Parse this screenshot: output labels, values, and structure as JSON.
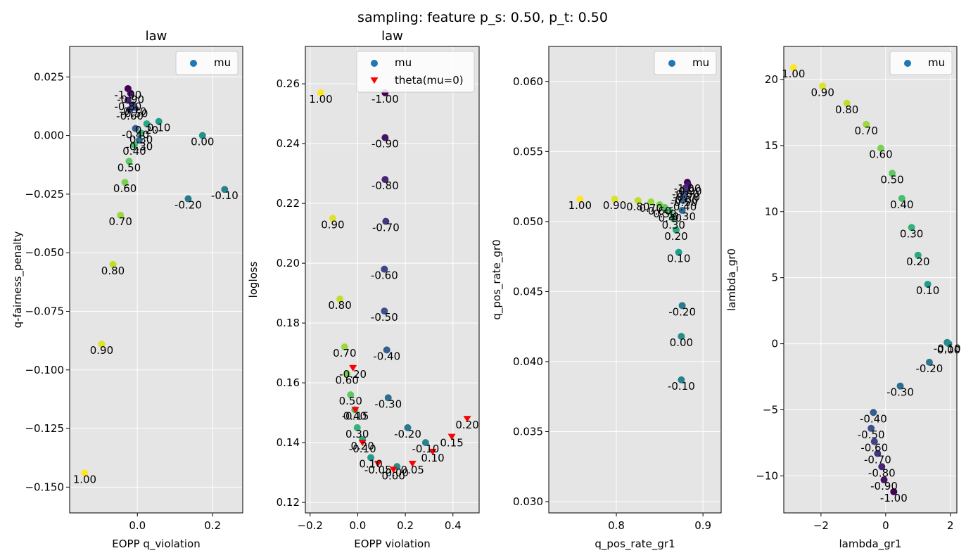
{
  "suptitle": "sampling: feature p_s: 0.50, p_t: 0.50",
  "colors": {
    "axes_bg": "#e5e5e5",
    "grid": "#ffffff",
    "legend_mu": "#1f77b4",
    "legend_theta": "#ff0000",
    "theta_marker": "#ff0000",
    "colormap": "viridis"
  },
  "chart_data": [
    {
      "type": "scatter",
      "title": "law",
      "xlabel": "EOPP q_violation",
      "ylabel": "q-fairness_penalty",
      "xlim": [
        -0.18,
        0.28
      ],
      "ylim": [
        -0.161,
        0.038
      ],
      "xticks": [
        {
          "v": 0.0,
          "label": "0.0"
        },
        {
          "v": 0.2,
          "label": "0.2"
        }
      ],
      "yticks": [
        {
          "v": 0.025,
          "label": "0.025"
        },
        {
          "v": 0.0,
          "label": "0.000"
        },
        {
          "v": -0.025,
          "label": "−0.025"
        },
        {
          "v": -0.05,
          "label": "−0.050"
        },
        {
          "v": -0.075,
          "label": "−0.075"
        },
        {
          "v": -0.1,
          "label": "−0.100"
        },
        {
          "v": -0.125,
          "label": "−0.125"
        },
        {
          "v": -0.15,
          "label": "−0.150"
        }
      ],
      "grid": true,
      "legend": {
        "position": "top-right",
        "entries": [
          {
            "label": "mu",
            "marker": "circle"
          }
        ]
      },
      "series": [
        {
          "marker": "circle",
          "points": [
            {
              "x": -0.025,
              "y": 0.02,
              "mu": -1.0,
              "label": "-1.00"
            },
            {
              "x": -0.018,
              "y": 0.018,
              "mu": -0.9,
              "label": "-0.90"
            },
            {
              "x": -0.025,
              "y": 0.015,
              "mu": -0.8,
              "label": "-0.80"
            },
            {
              "x": -0.012,
              "y": 0.013,
              "mu": -0.7,
              "label": "-0.70"
            },
            {
              "x": -0.02,
              "y": 0.011,
              "mu": -0.6,
              "label": "-0.60"
            },
            {
              "x": -0.008,
              "y": 0.012,
              "mu": -0.5,
              "label": "-0.50"
            },
            {
              "x": -0.005,
              "y": 0.003,
              "mu": -0.4,
              "label": "-0.40"
            },
            {
              "x": 0.005,
              "y": -0.002,
              "mu": -0.3,
              "label": "-0.30"
            },
            {
              "x": 0.135,
              "y": -0.027,
              "mu": -0.2,
              "label": "-0.20"
            },
            {
              "x": 0.232,
              "y": -0.023,
              "mu": -0.1,
              "label": "-0.10"
            },
            {
              "x": 0.173,
              "y": 0.0,
              "mu": 0.0,
              "label": "0.00"
            },
            {
              "x": 0.057,
              "y": 0.006,
              "mu": 0.1,
              "label": "0.10"
            },
            {
              "x": 0.025,
              "y": 0.005,
              "mu": 0.2,
              "label": "0.20"
            },
            {
              "x": 0.01,
              "y": 0.001,
              "mu": 0.3,
              "label": "0.30"
            },
            {
              "x": -0.008,
              "y": -0.004,
              "mu": 0.4,
              "label": "0.40"
            },
            {
              "x": -0.022,
              "y": -0.011,
              "mu": 0.5,
              "label": "0.50"
            },
            {
              "x": -0.033,
              "y": -0.02,
              "mu": 0.6,
              "label": "0.60"
            },
            {
              "x": -0.045,
              "y": -0.034,
              "mu": 0.7,
              "label": "0.70"
            },
            {
              "x": -0.065,
              "y": -0.055,
              "mu": 0.8,
              "label": "0.80"
            },
            {
              "x": -0.095,
              "y": -0.089,
              "mu": 0.9,
              "label": "0.90"
            },
            {
              "x": -0.14,
              "y": -0.144,
              "mu": 1.0,
              "label": "1.00"
            }
          ]
        }
      ]
    },
    {
      "type": "scatter",
      "title": "law",
      "xlabel": "EOPP violation",
      "ylabel": "logloss",
      "xlim": [
        -0.22,
        0.51
      ],
      "ylim": [
        0.1165,
        0.2725
      ],
      "xticks": [
        {
          "v": -0.2,
          "label": "−0.2"
        },
        {
          "v": 0.0,
          "label": "0.0"
        },
        {
          "v": 0.2,
          "label": "0.2"
        },
        {
          "v": 0.4,
          "label": "0.4"
        }
      ],
      "yticks": [
        {
          "v": 0.12,
          "label": "0.12"
        },
        {
          "v": 0.14,
          "label": "0.14"
        },
        {
          "v": 0.16,
          "label": "0.16"
        },
        {
          "v": 0.18,
          "label": "0.18"
        },
        {
          "v": 0.2,
          "label": "0.20"
        },
        {
          "v": 0.22,
          "label": "0.22"
        },
        {
          "v": 0.24,
          "label": "0.24"
        },
        {
          "v": 0.26,
          "label": "0.26"
        }
      ],
      "grid": true,
      "legend": {
        "position": "top-right",
        "entries": [
          {
            "label": "mu",
            "marker": "circle"
          },
          {
            "label": "theta(mu=0)",
            "marker": "triangle"
          }
        ]
      },
      "series": [
        {
          "marker": "circle",
          "points": [
            {
              "x": 0.115,
              "y": 0.257,
              "mu": -1.0,
              "label": "-1.00"
            },
            {
              "x": 0.115,
              "y": 0.242,
              "mu": -0.9,
              "label": "-0.90"
            },
            {
              "x": 0.115,
              "y": 0.228,
              "mu": -0.8,
              "label": "-0.80"
            },
            {
              "x": 0.118,
              "y": 0.214,
              "mu": -0.7,
              "label": "-0.70"
            },
            {
              "x": 0.112,
              "y": 0.198,
              "mu": -0.6,
              "label": "-0.60"
            },
            {
              "x": 0.112,
              "y": 0.184,
              "mu": -0.5,
              "label": "-0.50"
            },
            {
              "x": 0.122,
              "y": 0.171,
              "mu": -0.4,
              "label": "-0.40"
            },
            {
              "x": 0.128,
              "y": 0.155,
              "mu": -0.3,
              "label": "-0.30"
            },
            {
              "x": 0.21,
              "y": 0.145,
              "mu": -0.2,
              "label": "-0.20"
            },
            {
              "x": 0.285,
              "y": 0.14,
              "mu": -0.1,
              "label": "-0.10"
            },
            {
              "x": 0.165,
              "y": 0.132,
              "mu": 0.0,
              "label": "0.00"
            },
            {
              "x": 0.055,
              "y": 0.135,
              "mu": 0.1,
              "label": "0.10"
            },
            {
              "x": 0.02,
              "y": 0.141,
              "mu": 0.2,
              "label": "0.20"
            },
            {
              "x": -0.002,
              "y": 0.145,
              "mu": 0.3,
              "label": "0.30"
            },
            {
              "x": -0.012,
              "y": 0.151,
              "mu": 0.4,
              "label": "0.40"
            },
            {
              "x": -0.03,
              "y": 0.156,
              "mu": 0.5,
              "label": "0.50"
            },
            {
              "x": -0.045,
              "y": 0.163,
              "mu": 0.6,
              "label": "0.60"
            },
            {
              "x": -0.055,
              "y": 0.172,
              "mu": 0.7,
              "label": "0.70"
            },
            {
              "x": -0.075,
              "y": 0.188,
              "mu": 0.8,
              "label": "0.80"
            },
            {
              "x": -0.105,
              "y": 0.215,
              "mu": 0.9,
              "label": "0.90"
            },
            {
              "x": -0.155,
              "y": 0.257,
              "mu": 1.0,
              "label": "1.00"
            }
          ]
        },
        {
          "marker": "triangle",
          "name": "theta(mu=0)",
          "points": [
            {
              "x": -0.02,
              "y": 0.165,
              "label": "-0.20"
            },
            {
              "x": -0.01,
              "y": 0.151,
              "label": "-0.15"
            },
            {
              "x": 0.02,
              "y": 0.14,
              "label": "-0.10"
            },
            {
              "x": 0.085,
              "y": 0.133,
              "label": "-0.05"
            },
            {
              "x": 0.15,
              "y": 0.131,
              "label": "0.00"
            },
            {
              "x": 0.23,
              "y": 0.133,
              "label": "0.05"
            },
            {
              "x": 0.315,
              "y": 0.137,
              "label": "0.10"
            },
            {
              "x": 0.395,
              "y": 0.142,
              "label": "0.15"
            },
            {
              "x": 0.46,
              "y": 0.148,
              "label": "0.20"
            }
          ]
        }
      ]
    },
    {
      "type": "scatter",
      "title": "",
      "xlabel": "q_pos_rate_gr1",
      "ylabel": "q_pos_rate_gr0",
      "xlim": [
        0.722,
        0.921
      ],
      "ylim": [
        0.0292,
        0.0625
      ],
      "xticks": [
        {
          "v": 0.8,
          "label": "0.8"
        },
        {
          "v": 0.9,
          "label": "0.9"
        }
      ],
      "yticks": [
        {
          "v": 0.03,
          "label": "0.030"
        },
        {
          "v": 0.035,
          "label": "0.035"
        },
        {
          "v": 0.04,
          "label": "0.040"
        },
        {
          "v": 0.045,
          "label": "0.045"
        },
        {
          "v": 0.05,
          "label": "0.050"
        },
        {
          "v": 0.055,
          "label": "0.055"
        },
        {
          "v": 0.06,
          "label": "0.060"
        }
      ],
      "grid": true,
      "legend": {
        "position": "top-right",
        "entries": [
          {
            "label": "mu",
            "marker": "circle"
          }
        ]
      },
      "series": [
        {
          "marker": "circle",
          "points": [
            {
              "x": 0.882,
              "y": 0.0528,
              "mu": -1.0,
              "label": "-1.00"
            },
            {
              "x": 0.883,
              "y": 0.0526,
              "mu": -0.9,
              "label": "-0.90"
            },
            {
              "x": 0.88,
              "y": 0.0524,
              "mu": -0.8,
              "label": "-0.80"
            },
            {
              "x": 0.881,
              "y": 0.0522,
              "mu": -0.7,
              "label": "-0.70"
            },
            {
              "x": 0.879,
              "y": 0.052,
              "mu": -0.6,
              "label": "-0.60"
            },
            {
              "x": 0.878,
              "y": 0.0518,
              "mu": -0.5,
              "label": "-0.50"
            },
            {
              "x": 0.877,
              "y": 0.0515,
              "mu": -0.4,
              "label": "-0.40"
            },
            {
              "x": 0.876,
              "y": 0.0508,
              "mu": -0.3,
              "label": "-0.30"
            },
            {
              "x": 0.876,
              "y": 0.044,
              "mu": -0.2,
              "label": "-0.20"
            },
            {
              "x": 0.875,
              "y": 0.0387,
              "mu": -0.1,
              "label": "-0.10"
            },
            {
              "x": 0.875,
              "y": 0.0418,
              "mu": 0.0,
              "label": "0.00"
            },
            {
              "x": 0.872,
              "y": 0.0478,
              "mu": 0.1,
              "label": "0.10"
            },
            {
              "x": 0.869,
              "y": 0.0494,
              "mu": 0.2,
              "label": "0.20"
            },
            {
              "x": 0.866,
              "y": 0.0502,
              "mu": 0.3,
              "label": "0.30"
            },
            {
              "x": 0.862,
              "y": 0.0507,
              "mu": 0.4,
              "label": "0.40"
            },
            {
              "x": 0.856,
              "y": 0.051,
              "mu": 0.5,
              "label": "0.50"
            },
            {
              "x": 0.85,
              "y": 0.0512,
              "mu": 0.6,
              "label": "0.60"
            },
            {
              "x": 0.84,
              "y": 0.0514,
              "mu": 0.7,
              "label": "0.70"
            },
            {
              "x": 0.825,
              "y": 0.0515,
              "mu": 0.8,
              "label": "0.80"
            },
            {
              "x": 0.798,
              "y": 0.0516,
              "mu": 0.9,
              "label": "0.90"
            },
            {
              "x": 0.758,
              "y": 0.0516,
              "mu": 1.0,
              "label": "1.00"
            }
          ]
        }
      ]
    },
    {
      "type": "scatter",
      "title": "",
      "xlabel": "lambda_gr1",
      "ylabel": "lambda_gr0",
      "xlim": [
        -3.15,
        2.2
      ],
      "ylim": [
        -12.8,
        22.5
      ],
      "xticks": [
        {
          "v": -2,
          "label": "−2"
        },
        {
          "v": 0,
          "label": "0"
        },
        {
          "v": 2,
          "label": "2"
        }
      ],
      "yticks": [
        {
          "v": -10,
          "label": "−10"
        },
        {
          "v": -5,
          "label": "−5"
        },
        {
          "v": 0,
          "label": "0"
        },
        {
          "v": 5,
          "label": "5"
        },
        {
          "v": 10,
          "label": "10"
        },
        {
          "v": 15,
          "label": "15"
        },
        {
          "v": 20,
          "label": "20"
        }
      ],
      "grid": true,
      "legend": {
        "position": "top-right",
        "entries": [
          {
            "label": "mu",
            "marker": "circle"
          }
        ]
      },
      "series": [
        {
          "marker": "circle",
          "points": [
            {
              "x": 0.25,
              "y": -11.2,
              "mu": -1.0,
              "label": "-1.00"
            },
            {
              "x": -0.05,
              "y": -10.3,
              "mu": -0.9,
              "label": "-0.90"
            },
            {
              "x": -0.12,
              "y": -9.3,
              "mu": -0.8,
              "label": "-0.80"
            },
            {
              "x": -0.25,
              "y": -8.3,
              "mu": -0.7,
              "label": "-0.70"
            },
            {
              "x": -0.35,
              "y": -7.4,
              "mu": -0.6,
              "label": "-0.60"
            },
            {
              "x": -0.45,
              "y": -6.4,
              "mu": -0.5,
              "label": "-0.50"
            },
            {
              "x": -0.38,
              "y": -5.2,
              "mu": -0.4,
              "label": "-0.40"
            },
            {
              "x": 0.45,
              "y": -3.2,
              "mu": -0.3,
              "label": "-0.30"
            },
            {
              "x": 1.35,
              "y": -1.4,
              "mu": -0.2,
              "label": "-0.20"
            },
            {
              "x": 1.9,
              "y": 0.1,
              "mu": -0.1,
              "label": "-0.10"
            },
            {
              "x": 1.95,
              "y": 0.0,
              "mu": 0.0,
              "label": "0.00"
            },
            {
              "x": 1.3,
              "y": 4.5,
              "mu": 0.1,
              "label": "0.10"
            },
            {
              "x": 1.0,
              "y": 6.7,
              "mu": 0.2,
              "label": "0.20"
            },
            {
              "x": 0.8,
              "y": 8.8,
              "mu": 0.3,
              "label": "0.30"
            },
            {
              "x": 0.5,
              "y": 11.0,
              "mu": 0.4,
              "label": "0.40"
            },
            {
              "x": 0.2,
              "y": 12.9,
              "mu": 0.5,
              "label": "0.50"
            },
            {
              "x": -0.15,
              "y": 14.8,
              "mu": 0.6,
              "label": "0.60"
            },
            {
              "x": -0.6,
              "y": 16.6,
              "mu": 0.7,
              "label": "0.70"
            },
            {
              "x": -1.2,
              "y": 18.2,
              "mu": 0.8,
              "label": "0.80"
            },
            {
              "x": -1.95,
              "y": 19.5,
              "mu": 0.9,
              "label": "0.90"
            },
            {
              "x": -2.85,
              "y": 20.9,
              "mu": 1.0,
              "label": "1.00"
            }
          ]
        }
      ]
    }
  ]
}
